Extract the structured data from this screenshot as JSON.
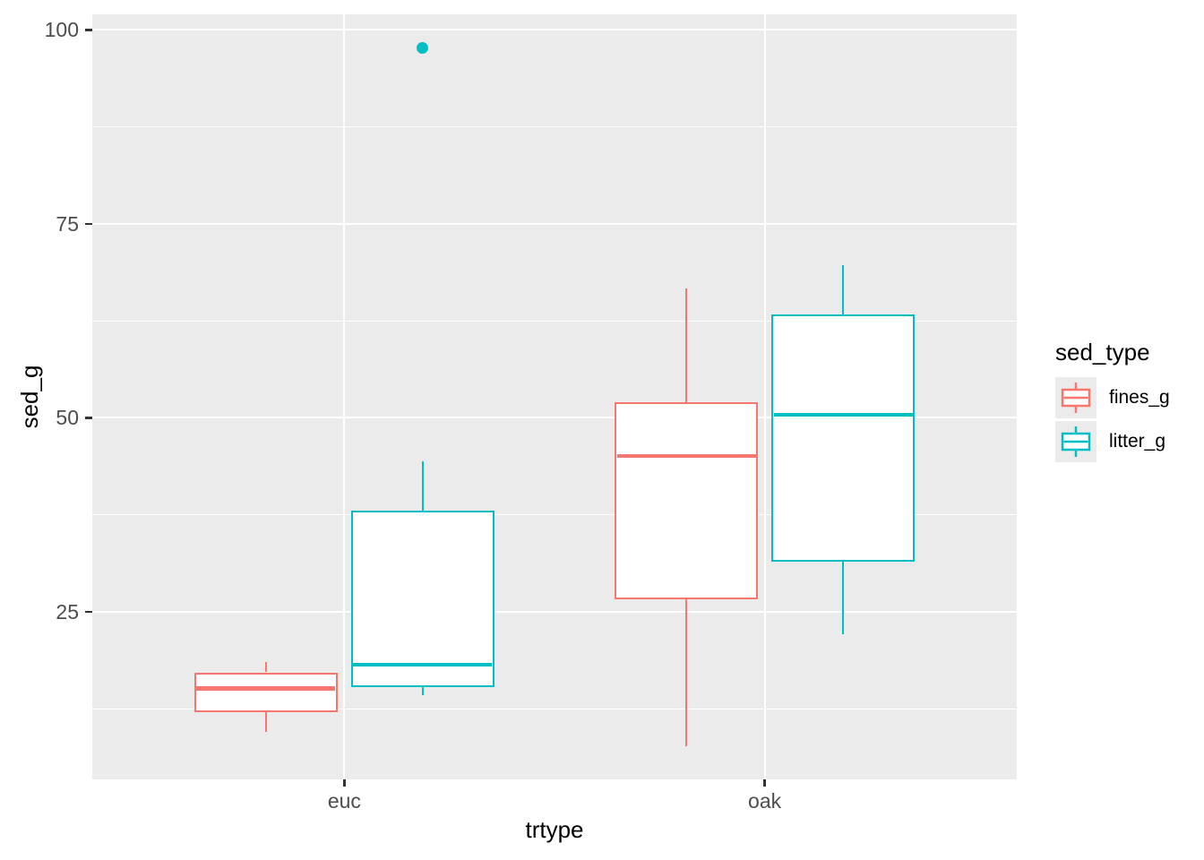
{
  "axes": {
    "x": {
      "label": "trtype",
      "categories": [
        "euc",
        "oak"
      ],
      "positions": [
        0.2727,
        0.7273
      ]
    },
    "y": {
      "label": "sed_g",
      "ticks": [
        25,
        50,
        75,
        100
      ],
      "minor_ticks": [
        12.5,
        37.5,
        62.5,
        87.5
      ],
      "ylim": [
        3.4,
        102.0
      ]
    }
  },
  "legend": {
    "title": "sed_type",
    "items": [
      {
        "label": "fines_g",
        "color": "#F8766D"
      },
      {
        "label": "litter_g",
        "color": "#00BFC4"
      }
    ]
  },
  "chart_data": {
    "type": "boxplot",
    "title": "",
    "xlabel": "trtype",
    "ylabel": "sed_g",
    "categories": [
      "euc",
      "oak"
    ],
    "legend_position": "right",
    "grid": "on",
    "boxes": [
      {
        "category": "euc",
        "series": "fines_g",
        "whisker_low": 9.5,
        "q1": 12.1,
        "median": 15.1,
        "q3": 17.2,
        "whisker_high": 18.5,
        "outliers": []
      },
      {
        "category": "euc",
        "series": "litter_g",
        "whisker_low": 14.3,
        "q1": 15.3,
        "median": 18.2,
        "q3": 38.0,
        "whisker_high": 44.4,
        "outliers": [
          97.7
        ]
      },
      {
        "category": "oak",
        "series": "fines_g",
        "whisker_low": 7.7,
        "q1": 26.6,
        "median": 45.1,
        "q3": 52.0,
        "whisker_high": 66.7,
        "outliers": []
      },
      {
        "category": "oak",
        "series": "litter_g",
        "whisker_low": 22.1,
        "q1": 31.5,
        "median": 50.4,
        "q3": 63.3,
        "whisker_high": 69.7,
        "outliers": []
      }
    ]
  },
  "colors": {
    "panel_background": "#EBEBEB",
    "gridline": "#FFFFFF",
    "tick_text": "#4D4D4D",
    "tick_mark": "#333333",
    "axis_title": "#000000",
    "fines": "#F8766D",
    "litter": "#00BFC4"
  }
}
